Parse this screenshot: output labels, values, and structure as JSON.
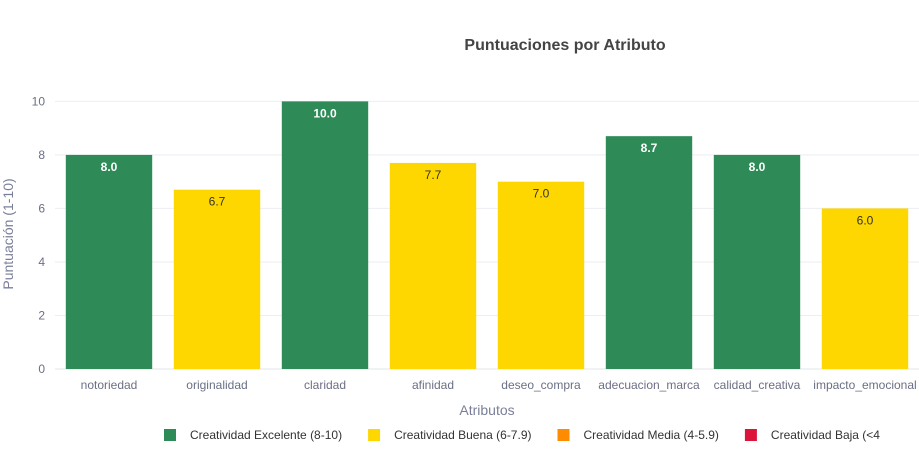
{
  "chart_data": {
    "type": "bar",
    "title": "Puntuaciones por Atributo",
    "xlabel": "Atributos",
    "ylabel": "Puntuación (1-10)",
    "ylim": [
      0,
      10.5
    ],
    "yticks": [
      0,
      2,
      4,
      6,
      8,
      10
    ],
    "grid": true,
    "categories": [
      "notoriedad",
      "originalidad",
      "claridad",
      "afinidad",
      "deseo_compra",
      "adecuacion_marca",
      "calidad_creativa",
      "impacto_emocional"
    ],
    "values": [
      8.0,
      6.7,
      10.0,
      7.7,
      7.0,
      8.7,
      8.0,
      6.0
    ],
    "value_labels": [
      "8.0",
      "6.7",
      "10.0",
      "7.7",
      "7.0",
      "8.7",
      "8.0",
      "6.0"
    ],
    "bar_category": [
      0,
      1,
      0,
      1,
      1,
      0,
      0,
      1
    ],
    "legend": [
      {
        "label": "Creatividad Excelente (8-10)",
        "color": "#2e8b57",
        "text_color": "#ffffff"
      },
      {
        "label": "Creatividad Buena (6-7.9)",
        "color": "#ffd700",
        "text_color": "#333333"
      },
      {
        "label": "Creatividad Media (4-5.9)",
        "color": "#ff8c00",
        "text_color": "#333333"
      },
      {
        "label": "Creatividad Baja (<4",
        "color": "#dc143c",
        "text_color": "#ffffff"
      }
    ],
    "legend_position": "bottom"
  }
}
